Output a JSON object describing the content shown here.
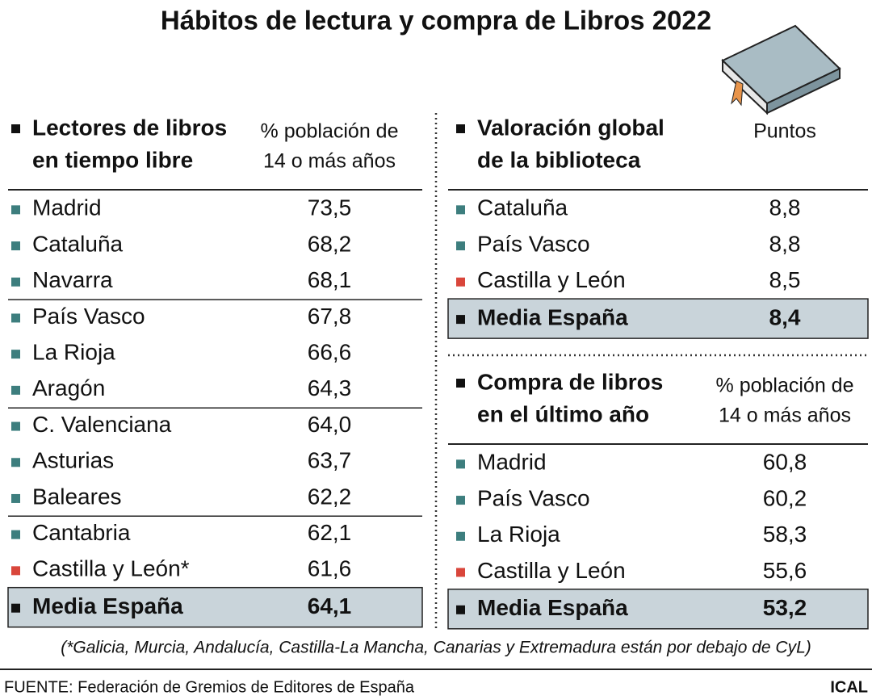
{
  "title": "Hábitos de lectura y compra de Libros 2022",
  "tables": [
    {
      "title_lines": [
        "Lectores de libros",
        "en tiempo libre"
      ],
      "unit_lines": [
        "% población de",
        "14 o más años"
      ],
      "groups": [
        [
          {
            "label": "Madrid",
            "value": "73,5",
            "marker": "#3d7e7e"
          },
          {
            "label": "Cataluña",
            "value": "68,2",
            "marker": "#3d7e7e"
          },
          {
            "label": "Navarra",
            "value": "68,1",
            "marker": "#3d7e7e"
          }
        ],
        [
          {
            "label": "País Vasco",
            "value": "67,8",
            "marker": "#3d7e7e"
          },
          {
            "label": "La Rioja",
            "value": "66,6",
            "marker": "#3d7e7e"
          },
          {
            "label": "Aragón",
            "value": "64,3",
            "marker": "#3d7e7e"
          }
        ],
        [
          {
            "label": "C. Valenciana",
            "value": "64,0",
            "marker": "#3d7e7e"
          },
          {
            "label": "Asturias",
            "value": "63,7",
            "marker": "#3d7e7e"
          },
          {
            "label": "Baleares",
            "value": "62,2",
            "marker": "#3d7e7e"
          }
        ],
        [
          {
            "label": "Cantabria",
            "value": "62,1",
            "marker": "#3d7e7e"
          },
          {
            "label": "Castilla y León*",
            "value": "61,6",
            "marker": "#d9463b"
          }
        ]
      ],
      "total": {
        "label": "Media España",
        "value": "64,1",
        "marker": "#111111"
      }
    },
    {
      "title_lines": [
        "Valoración global",
        "de la biblioteca"
      ],
      "unit_lines": [
        "Puntos"
      ],
      "groups": [
        [
          {
            "label": "Cataluña",
            "value": "8,8",
            "marker": "#3d7e7e"
          },
          {
            "label": "País Vasco",
            "value": "8,8",
            "marker": "#3d7e7e"
          },
          {
            "label": "Castilla y León",
            "value": "8,5",
            "marker": "#d9463b"
          }
        ]
      ],
      "total": {
        "label": "Media España",
        "value": "8,4",
        "marker": "#111111"
      }
    },
    {
      "title_lines": [
        "Compra de libros",
        "en el último año"
      ],
      "unit_lines": [
        "% población de",
        "14 o más años"
      ],
      "groups": [
        [
          {
            "label": "Madrid",
            "value": "60,8",
            "marker": "#3d7e7e"
          },
          {
            "label": "País Vasco",
            "value": "60,2",
            "marker": "#3d7e7e"
          },
          {
            "label": "La Rioja",
            "value": "58,3",
            "marker": "#3d7e7e"
          },
          {
            "label": "Castilla y León",
            "value": "55,6",
            "marker": "#d9463b"
          }
        ]
      ],
      "total": {
        "label": "Media España",
        "value": "53,2",
        "marker": "#111111"
      }
    }
  ],
  "footnote": "(*Galicia, Murcia, Andalucía, Castilla-La Mancha, Canarias y Extremadura están por debajo de CyL)",
  "source": "FUENTE: Federación de Gremios de Editores de España",
  "brand": "ICAL"
}
